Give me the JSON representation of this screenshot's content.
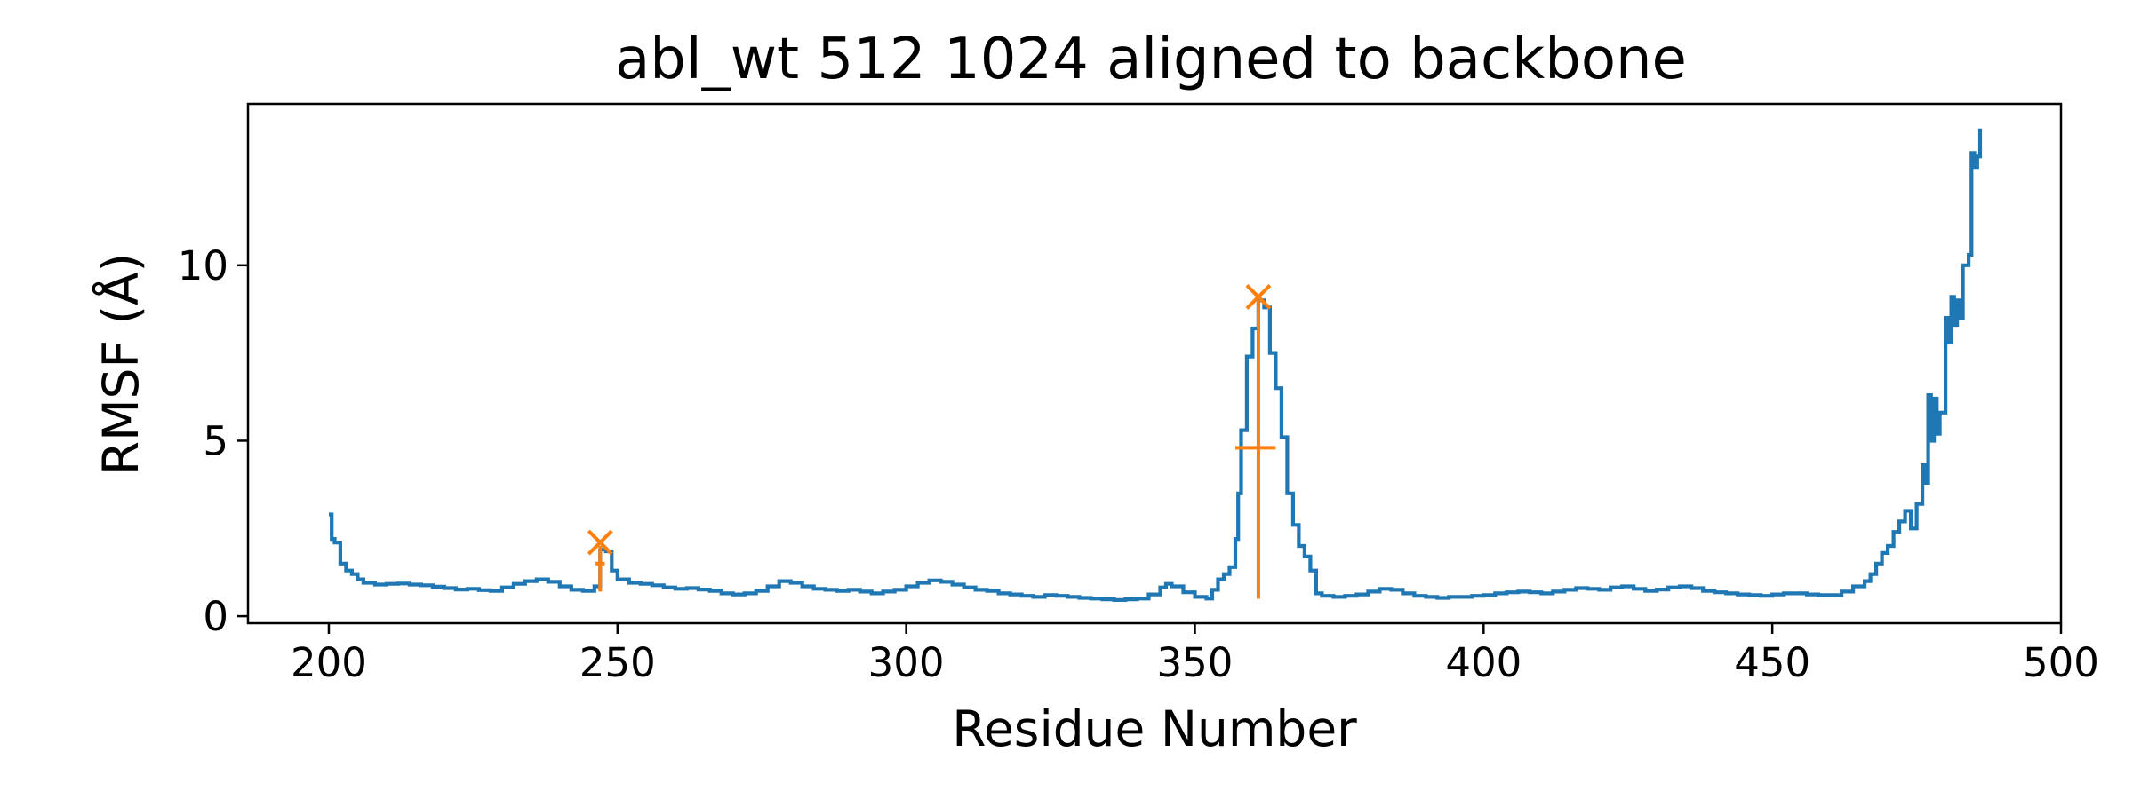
{
  "chart_data": {
    "type": "line",
    "title": "abl_wt 512 1024 aligned to backbone",
    "xlabel": "Residue Number",
    "ylabel": "RMSF (Å)",
    "xlim": [
      186,
      500
    ],
    "ylim": [
      -0.2,
      14.6
    ],
    "xticks": [
      200,
      250,
      300,
      350,
      400,
      450,
      500
    ],
    "yticks": [
      0,
      5,
      10
    ],
    "grid": false,
    "legend": "none",
    "line_style": "steps",
    "colors": {
      "rmsf": "#1f77b4",
      "markers": "#ff7f0e"
    },
    "series": [
      {
        "points": [
          [
            200,
            2.9
          ],
          [
            200.5,
            2.2
          ],
          [
            201,
            2.1
          ],
          [
            202,
            1.5
          ],
          [
            203,
            1.3
          ],
          [
            204,
            1.2
          ],
          [
            205,
            1.05
          ],
          [
            206,
            0.95
          ],
          [
            208,
            0.9
          ],
          [
            210,
            0.92
          ],
          [
            212,
            0.93
          ],
          [
            214,
            0.9
          ],
          [
            216,
            0.88
          ],
          [
            218,
            0.84
          ],
          [
            220,
            0.8
          ],
          [
            222,
            0.76
          ],
          [
            224,
            0.78
          ],
          [
            226,
            0.74
          ],
          [
            228,
            0.72
          ],
          [
            230,
            0.82
          ],
          [
            232,
            0.92
          ],
          [
            234,
            1.0
          ],
          [
            236,
            1.05
          ],
          [
            238,
            0.98
          ],
          [
            240,
            0.85
          ],
          [
            242,
            0.75
          ],
          [
            244,
            0.72
          ],
          [
            246,
            0.85
          ],
          [
            247,
            1.9
          ],
          [
            248,
            1.85
          ],
          [
            249,
            1.3
          ],
          [
            250,
            1.05
          ],
          [
            252,
            0.95
          ],
          [
            254,
            0.92
          ],
          [
            256,
            0.88
          ],
          [
            258,
            0.82
          ],
          [
            260,
            0.78
          ],
          [
            262,
            0.8
          ],
          [
            264,
            0.76
          ],
          [
            266,
            0.72
          ],
          [
            268,
            0.65
          ],
          [
            270,
            0.62
          ],
          [
            272,
            0.65
          ],
          [
            274,
            0.72
          ],
          [
            276,
            0.85
          ],
          [
            278,
            1.0
          ],
          [
            280,
            0.95
          ],
          [
            282,
            0.85
          ],
          [
            284,
            0.78
          ],
          [
            286,
            0.75
          ],
          [
            288,
            0.72
          ],
          [
            290,
            0.75
          ],
          [
            292,
            0.7
          ],
          [
            294,
            0.65
          ],
          [
            296,
            0.7
          ],
          [
            298,
            0.75
          ],
          [
            300,
            0.85
          ],
          [
            302,
            0.95
          ],
          [
            304,
            1.02
          ],
          [
            306,
            0.98
          ],
          [
            308,
            0.9
          ],
          [
            310,
            0.82
          ],
          [
            312,
            0.75
          ],
          [
            314,
            0.72
          ],
          [
            316,
            0.65
          ],
          [
            318,
            0.62
          ],
          [
            320,
            0.58
          ],
          [
            322,
            0.55
          ],
          [
            324,
            0.6
          ],
          [
            326,
            0.58
          ],
          [
            328,
            0.55
          ],
          [
            330,
            0.52
          ],
          [
            332,
            0.5
          ],
          [
            334,
            0.48
          ],
          [
            336,
            0.46
          ],
          [
            338,
            0.48
          ],
          [
            340,
            0.5
          ],
          [
            342,
            0.62
          ],
          [
            344,
            0.82
          ],
          [
            345,
            0.92
          ],
          [
            346,
            0.85
          ],
          [
            348,
            0.68
          ],
          [
            350,
            0.55
          ],
          [
            352,
            0.5
          ],
          [
            353,
            0.75
          ],
          [
            354,
            1.05
          ],
          [
            355,
            1.2
          ],
          [
            356,
            1.4
          ],
          [
            357,
            2.2
          ],
          [
            357.5,
            3.5
          ],
          [
            358,
            5.3
          ],
          [
            359,
            7.4
          ],
          [
            360,
            8.2
          ],
          [
            361,
            9.0
          ],
          [
            362,
            8.8
          ],
          [
            363,
            7.5
          ],
          [
            364,
            6.5
          ],
          [
            365,
            5.1
          ],
          [
            366,
            3.5
          ],
          [
            367,
            2.6
          ],
          [
            368,
            2.0
          ],
          [
            369,
            1.7
          ],
          [
            370,
            1.3
          ],
          [
            371,
            0.65
          ],
          [
            372,
            0.58
          ],
          [
            374,
            0.55
          ],
          [
            376,
            0.58
          ],
          [
            378,
            0.62
          ],
          [
            380,
            0.7
          ],
          [
            382,
            0.78
          ],
          [
            384,
            0.75
          ],
          [
            386,
            0.65
          ],
          [
            388,
            0.58
          ],
          [
            390,
            0.55
          ],
          [
            392,
            0.52
          ],
          [
            394,
            0.55
          ],
          [
            396,
            0.55
          ],
          [
            398,
            0.58
          ],
          [
            400,
            0.6
          ],
          [
            402,
            0.65
          ],
          [
            404,
            0.68
          ],
          [
            406,
            0.7
          ],
          [
            408,
            0.68
          ],
          [
            410,
            0.65
          ],
          [
            412,
            0.7
          ],
          [
            414,
            0.75
          ],
          [
            416,
            0.8
          ],
          [
            418,
            0.78
          ],
          [
            420,
            0.75
          ],
          [
            422,
            0.82
          ],
          [
            424,
            0.85
          ],
          [
            426,
            0.78
          ],
          [
            428,
            0.72
          ],
          [
            430,
            0.76
          ],
          [
            432,
            0.82
          ],
          [
            434,
            0.85
          ],
          [
            436,
            0.8
          ],
          [
            438,
            0.72
          ],
          [
            440,
            0.68
          ],
          [
            442,
            0.65
          ],
          [
            444,
            0.62
          ],
          [
            446,
            0.6
          ],
          [
            448,
            0.58
          ],
          [
            450,
            0.62
          ],
          [
            452,
            0.65
          ],
          [
            454,
            0.65
          ],
          [
            456,
            0.62
          ],
          [
            458,
            0.6
          ],
          [
            460,
            0.6
          ],
          [
            462,
            0.7
          ],
          [
            464,
            0.85
          ],
          [
            466,
            1.0
          ],
          [
            467,
            1.2
          ],
          [
            468,
            1.5
          ],
          [
            469,
            1.8
          ],
          [
            470,
            2.0
          ],
          [
            471,
            2.4
          ],
          [
            472,
            2.7
          ],
          [
            473,
            3.0
          ],
          [
            474,
            2.5
          ],
          [
            475,
            3.2
          ],
          [
            476,
            4.3
          ],
          [
            476.5,
            3.8
          ],
          [
            477,
            6.3
          ],
          [
            477.5,
            5.0
          ],
          [
            478,
            6.2
          ],
          [
            478.5,
            5.2
          ],
          [
            479,
            5.8
          ],
          [
            480,
            8.5
          ],
          [
            480.5,
            7.8
          ],
          [
            481,
            9.1
          ],
          [
            481.5,
            8.3
          ],
          [
            482,
            9.0
          ],
          [
            482.5,
            8.5
          ],
          [
            483,
            10.0
          ],
          [
            484,
            10.3
          ],
          [
            484.5,
            13.2
          ],
          [
            485,
            12.8
          ],
          [
            485.5,
            13.1
          ],
          [
            486,
            13.9
          ]
        ]
      }
    ],
    "markers": [
      {
        "x": 247,
        "y": 2.1,
        "symbol": "x"
      },
      {
        "x": 361,
        "y": 9.1,
        "symbol": "x"
      }
    ],
    "error_bars": [
      {
        "x": 247,
        "y": 1.5,
        "ymin": 0.7,
        "ymax": 2.0,
        "xmin": 246.2,
        "xmax": 247.8
      },
      {
        "x": 361,
        "y": 4.8,
        "ymin": 0.5,
        "ymax": 9.0,
        "xmin": 357,
        "xmax": 364
      }
    ]
  }
}
